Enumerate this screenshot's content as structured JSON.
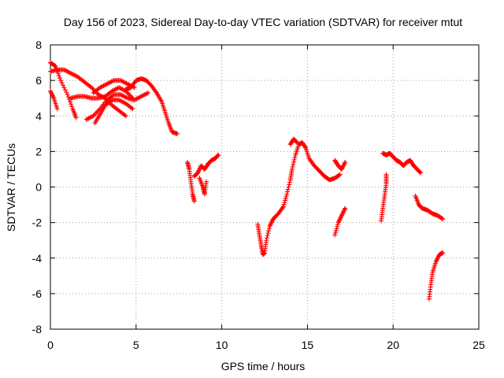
{
  "chart_data": {
    "type": "scatter",
    "title": "Day 156 of 2023, Sidereal Day-to-day VTEC variation (SDTVAR) for receiver mtut",
    "xlabel": "GPS time / hours",
    "ylabel": "SDTVAR / TECUs",
    "xlim": [
      0,
      25
    ],
    "ylim": [
      -8,
      8
    ],
    "xticks": [
      "0",
      "5",
      "10",
      "15",
      "20",
      "25"
    ],
    "xtick_values": [
      0,
      5,
      10,
      15,
      20,
      25
    ],
    "yticks": [
      "8",
      "6",
      "4",
      "2",
      "0",
      "-2",
      "-4",
      "-6",
      "-8"
    ],
    "ytick_values": [
      8,
      6,
      4,
      2,
      0,
      -2,
      -4,
      -6,
      -8
    ],
    "grid": true,
    "marker": "plus",
    "marker_color": "#ff0000",
    "segments": [
      [
        [
          0.0,
          7.0
        ],
        [
          0.3,
          6.8
        ],
        [
          0.6,
          6.0
        ],
        [
          1.0,
          5.2
        ],
        [
          1.3,
          4.4
        ],
        [
          1.5,
          3.9
        ]
      ],
      [
        [
          0.0,
          6.5
        ],
        [
          0.4,
          6.6
        ],
        [
          0.8,
          6.6
        ],
        [
          1.2,
          6.4
        ],
        [
          1.6,
          6.2
        ],
        [
          2.0,
          5.9
        ],
        [
          2.4,
          5.6
        ],
        [
          2.8,
          5.2
        ],
        [
          3.2,
          5.0
        ],
        [
          3.6,
          4.6
        ],
        [
          4.0,
          4.3
        ],
        [
          4.4,
          4.0
        ]
      ],
      [
        [
          0.0,
          5.4
        ],
        [
          0.2,
          5.0
        ],
        [
          0.4,
          4.4
        ]
      ],
      [
        [
          1.2,
          5.0
        ],
        [
          1.6,
          5.1
        ],
        [
          2.0,
          5.1
        ],
        [
          2.4,
          5.0
        ],
        [
          2.8,
          5.0
        ],
        [
          3.2,
          5.1
        ],
        [
          3.6,
          5.4
        ],
        [
          4.0,
          5.6
        ],
        [
          4.4,
          5.4
        ],
        [
          4.8,
          5.0
        ]
      ],
      [
        [
          2.1,
          3.8
        ],
        [
          2.5,
          4.0
        ],
        [
          2.9,
          4.4
        ],
        [
          3.3,
          4.9
        ],
        [
          3.7,
          5.2
        ],
        [
          4.1,
          5.2
        ],
        [
          4.5,
          5.0
        ],
        [
          4.9,
          4.9
        ],
        [
          5.3,
          5.1
        ],
        [
          5.7,
          5.3
        ]
      ],
      [
        [
          2.6,
          3.6
        ],
        [
          2.9,
          4.1
        ],
        [
          3.2,
          4.6
        ],
        [
          3.6,
          4.9
        ],
        [
          4.0,
          4.9
        ],
        [
          4.4,
          4.7
        ],
        [
          4.8,
          4.4
        ]
      ],
      [
        [
          2.5,
          5.3
        ],
        [
          2.9,
          5.6
        ],
        [
          3.3,
          5.8
        ],
        [
          3.7,
          6.0
        ],
        [
          4.1,
          6.0
        ],
        [
          4.5,
          5.8
        ],
        [
          4.9,
          5.6
        ]
      ],
      [
        [
          4.4,
          5.5
        ],
        [
          4.7,
          5.6
        ],
        [
          5.0,
          6.0
        ],
        [
          5.3,
          6.1
        ],
        [
          5.6,
          6.0
        ],
        [
          5.9,
          5.7
        ],
        [
          6.2,
          5.3
        ],
        [
          6.5,
          4.8
        ],
        [
          6.7,
          4.2
        ],
        [
          6.9,
          3.6
        ],
        [
          7.1,
          3.1
        ],
        [
          7.4,
          3.0
        ]
      ],
      [
        [
          8.0,
          1.4
        ],
        [
          8.1,
          1.0
        ],
        [
          8.2,
          0.3
        ],
        [
          8.3,
          -0.4
        ],
        [
          8.4,
          -0.8
        ]
      ],
      [
        [
          8.4,
          0.6
        ],
        [
          8.6,
          0.8
        ],
        [
          8.8,
          1.2
        ],
        [
          9.0,
          1.0
        ],
        [
          9.2,
          1.3
        ],
        [
          9.4,
          1.5
        ],
        [
          9.6,
          1.6
        ],
        [
          9.8,
          1.8
        ]
      ],
      [
        [
          8.7,
          0.5
        ],
        [
          8.9,
          0.0
        ],
        [
          9.0,
          -0.4
        ],
        [
          9.1,
          0.3
        ]
      ],
      [
        [
          12.1,
          -2.1
        ],
        [
          12.2,
          -2.7
        ],
        [
          12.3,
          -3.3
        ],
        [
          12.4,
          -3.8
        ],
        [
          12.5,
          -3.7
        ],
        [
          12.6,
          -3.0
        ],
        [
          12.8,
          -2.2
        ],
        [
          13.0,
          -1.8
        ],
        [
          13.3,
          -1.5
        ],
        [
          13.6,
          -1.1
        ],
        [
          13.8,
          -0.4
        ],
        [
          14.0,
          0.4
        ],
        [
          14.1,
          1.0
        ],
        [
          14.3,
          1.8
        ],
        [
          14.5,
          2.4
        ],
        [
          14.7,
          2.5
        ],
        [
          14.9,
          2.2
        ],
        [
          15.1,
          1.6
        ],
        [
          15.4,
          1.2
        ],
        [
          15.7,
          0.9
        ],
        [
          16.0,
          0.6
        ],
        [
          16.3,
          0.4
        ],
        [
          16.6,
          0.5
        ],
        [
          16.9,
          0.7
        ]
      ],
      [
        [
          14.0,
          2.4
        ],
        [
          14.2,
          2.7
        ],
        [
          14.4,
          2.5
        ]
      ],
      [
        [
          16.6,
          1.5
        ],
        [
          16.8,
          1.2
        ],
        [
          17.0,
          1.0
        ],
        [
          17.2,
          1.4
        ]
      ],
      [
        [
          16.6,
          -2.7
        ],
        [
          16.8,
          -2.0
        ],
        [
          17.0,
          -1.6
        ],
        [
          17.2,
          -1.2
        ]
      ],
      [
        [
          19.3,
          -1.9
        ],
        [
          19.4,
          -1.2
        ],
        [
          19.5,
          -0.5
        ],
        [
          19.6,
          0.2
        ],
        [
          19.6,
          0.7
        ]
      ],
      [
        [
          19.4,
          1.9
        ],
        [
          19.6,
          1.8
        ],
        [
          19.8,
          1.9
        ],
        [
          20.0,
          1.7
        ],
        [
          20.2,
          1.5
        ],
        [
          20.4,
          1.4
        ],
        [
          20.6,
          1.2
        ],
        [
          20.8,
          1.4
        ],
        [
          21.0,
          1.5
        ],
        [
          21.2,
          1.2
        ],
        [
          21.4,
          1.0
        ],
        [
          21.6,
          0.8
        ]
      ],
      [
        [
          21.3,
          -0.5
        ],
        [
          21.5,
          -1.0
        ],
        [
          21.7,
          -1.2
        ],
        [
          22.0,
          -1.3
        ],
        [
          22.3,
          -1.5
        ],
        [
          22.6,
          -1.6
        ],
        [
          22.9,
          -1.8
        ]
      ],
      [
        [
          22.1,
          -6.3
        ],
        [
          22.2,
          -5.5
        ],
        [
          22.3,
          -4.8
        ],
        [
          22.5,
          -4.2
        ],
        [
          22.7,
          -3.8
        ],
        [
          22.9,
          -3.7
        ]
      ]
    ]
  }
}
